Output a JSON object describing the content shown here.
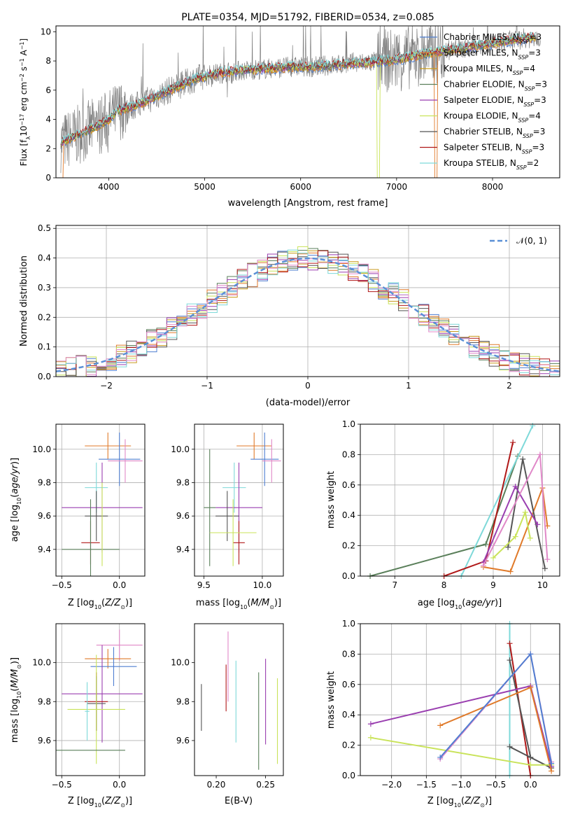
{
  "colors": {
    "chabrier_miles": "#4f7fd1",
    "salpeter_miles": "#e07a2a",
    "kroupa_miles": "#c89a1c",
    "chabrier_elodie": "#5a7f5a",
    "salpeter_elodie": "#9a3fb0",
    "kroupa_elodie": "#c9e35a",
    "chabrier_stelib": "#555555",
    "salpeter_stelib": "#b01818",
    "kroupa_stelib": "#7ed9d9",
    "pink": "#e088c8",
    "data_gray": "#808080",
    "normal_curve": "#5a8fd6"
  },
  "chart_data": [
    {
      "id": "spectrum",
      "type": "line",
      "title": "PLATE=0354, MJD=51792, FIBERID=0534, z=0.085",
      "xlabel": "wavelength [Angstrom, rest frame]",
      "ylabel": "Flux [f",
      "ylabel_unit": "10",
      "xlim": [
        3450,
        8700
      ],
      "ylim": [
        0,
        10.4
      ],
      "xticks": [
        "4000",
        "5000",
        "6000",
        "7000",
        "8000"
      ],
      "yticks": [
        "0",
        "2",
        "4",
        "6",
        "8",
        "10"
      ],
      "continuum": [
        [
          3500,
          2.4
        ],
        [
          3700,
          3.0
        ],
        [
          3900,
          3.6
        ],
        [
          4000,
          4.0
        ],
        [
          4100,
          4.6
        ],
        [
          4300,
          5.0
        ],
        [
          4500,
          5.6
        ],
        [
          4700,
          6.2
        ],
        [
          4900,
          6.8
        ],
        [
          5100,
          7.1
        ],
        [
          5300,
          7.3
        ],
        [
          5500,
          7.4
        ],
        [
          5700,
          7.5
        ],
        [
          5900,
          7.6
        ],
        [
          6100,
          7.6
        ],
        [
          6300,
          7.7
        ],
        [
          6500,
          7.8
        ],
        [
          6700,
          7.9
        ],
        [
          6900,
          8.0
        ],
        [
          7100,
          8.2
        ],
        [
          7300,
          8.5
        ],
        [
          7400,
          8.6
        ],
        [
          7600,
          8.8
        ],
        [
          7800,
          9.0
        ],
        [
          8000,
          9.2
        ],
        [
          8200,
          9.4
        ],
        [
          8400,
          9.6
        ],
        [
          8600,
          9.8
        ]
      ],
      "legend_position": "upper-right",
      "legend": [
        {
          "name": "Chabrier MILES, N",
          "sub": "SSP",
          "eq": "=3"
        },
        {
          "name": "Salpeter MILES, N",
          "sub": "SSP",
          "eq": "=3"
        },
        {
          "name": "Kroupa MILES, N",
          "sub": "SSP",
          "eq": "=4"
        },
        {
          "name": "Chabrier ELODIE, N",
          "sub": "SSP",
          "eq": "=3"
        },
        {
          "name": "Salpeter ELODIE, N",
          "sub": "SSP",
          "eq": "=3"
        },
        {
          "name": "Kroupa ELODIE, N",
          "sub": "SSP",
          "eq": "=4"
        },
        {
          "name": "Chabrier STELIB, N",
          "sub": "SSP",
          "eq": "=3"
        },
        {
          "name": "Salpeter STELIB, N",
          "sub": "SSP",
          "eq": "=3"
        },
        {
          "name": "Kroupa STELIB, N",
          "sub": "SSP",
          "eq": "=2"
        }
      ]
    },
    {
      "id": "residuals",
      "type": "bar",
      "xlabel": "(data-model)/error",
      "ylabel": "Normed distribution",
      "xlim": [
        -2.5,
        2.5
      ],
      "ylim": [
        0,
        0.51
      ],
      "xticks": [
        "−2",
        "−1",
        "0",
        "1",
        "2"
      ],
      "yticks": [
        "0.0",
        "0.1",
        "0.2",
        "0.3",
        "0.4",
        "0.5"
      ],
      "grid": true,
      "legend_position": "upper-right",
      "legend_label": "𝒩(0, 1)"
    },
    {
      "id": "age_vs_Z",
      "type": "scatter",
      "xlabel": "Z [log",
      "xlabel_tail": "(Z/Z",
      "ylabel": "age  [log",
      "ylabel_tail": "(age/yr)]",
      "xlim": [
        -0.55,
        0.22
      ],
      "ylim": [
        9.24,
        10.15
      ],
      "xticks": [
        "−0.5",
        "0.0"
      ],
      "yticks": [
        "9.4",
        "9.6",
        "9.8",
        "10.0"
      ],
      "grid": true,
      "points": [
        {
          "x": -0.1,
          "y": 10.02,
          "xerr": 0.2,
          "yerr": 0.08,
          "c": "salpeter_miles"
        },
        {
          "x": 0.0,
          "y": 9.94,
          "xerr": 0.18,
          "yerr": 0.16,
          "c": "chabrier_miles"
        },
        {
          "x": 0.05,
          "y": 9.93,
          "xerr": 0.15,
          "yerr": 0.13,
          "c": "pink"
        },
        {
          "x": -0.2,
          "y": 9.77,
          "xerr": 0.1,
          "yerr": 0.15,
          "c": "kroupa_stelib"
        },
        {
          "x": -0.15,
          "y": 9.65,
          "xerr": 0.35,
          "yerr": 0.27,
          "c": "salpeter_elodie"
        },
        {
          "x": -0.2,
          "y": 9.6,
          "xerr": 0.1,
          "yerr": 0.15,
          "c": "chabrier_stelib"
        },
        {
          "x": -0.25,
          "y": 9.44,
          "xerr": 0.08,
          "yerr": 0.13,
          "c": "salpeter_stelib"
        },
        {
          "x": -0.25,
          "y": 9.4,
          "xerr": 0.25,
          "yerr": 0.3,
          "c": "chabrier_elodie"
        },
        {
          "x": -0.15,
          "y": 9.55,
          "xerr": 0.0,
          "yerr": 0.25,
          "c": "kroupa_elodie"
        }
      ]
    },
    {
      "id": "age_vs_mass",
      "type": "scatter",
      "xlabel": "mass [log",
      "xlabel_tail": "(M/M",
      "xlim": [
        9.42,
        10.18
      ],
      "ylim": [
        9.24,
        10.15
      ],
      "xticks": [
        "9.5",
        "10.0"
      ],
      "yticks": [
        "9.4",
        "9.6",
        "9.8",
        "10.0"
      ],
      "grid": true,
      "points": [
        {
          "x": 9.93,
          "y": 10.02,
          "xerr": 0.15,
          "yerr": 0.08,
          "c": "salpeter_miles"
        },
        {
          "x": 10.02,
          "y": 9.94,
          "xerr": 0.12,
          "yerr": 0.16,
          "c": "chabrier_miles"
        },
        {
          "x": 10.08,
          "y": 9.93,
          "xerr": 0.08,
          "yerr": 0.13,
          "c": "pink"
        },
        {
          "x": 9.76,
          "y": 9.77,
          "xerr": 0.1,
          "yerr": 0.15,
          "c": "kroupa_stelib"
        },
        {
          "x": 9.8,
          "y": 9.65,
          "xerr": 0.2,
          "yerr": 0.27,
          "c": "salpeter_elodie"
        },
        {
          "x": 9.7,
          "y": 9.6,
          "xerr": 0.1,
          "yerr": 0.15,
          "c": "chabrier_stelib"
        },
        {
          "x": 9.8,
          "y": 9.44,
          "xerr": 0.05,
          "yerr": 0.13,
          "c": "salpeter_stelib"
        },
        {
          "x": 9.55,
          "y": 9.65,
          "xerr": 0.05,
          "yerr": 0.35,
          "c": "chabrier_elodie"
        },
        {
          "x": 9.75,
          "y": 9.5,
          "xerr": 0.2,
          "yerr": 0.2,
          "c": "kroupa_elodie"
        }
      ]
    },
    {
      "id": "massweight_vs_age",
      "type": "line",
      "xlabel": "age  [log",
      "xlabel_tail": "(age/yr)]",
      "ylabel": "mass weight",
      "xlim": [
        6.3,
        10.35
      ],
      "ylim": [
        0,
        1
      ],
      "xticks": [
        "7",
        "8",
        "9",
        "10"
      ],
      "yticks": [
        "0.0",
        "0.2",
        "0.4",
        "0.6",
        "0.8",
        "1.0"
      ],
      "grid": true,
      "series": [
        {
          "c": "chabrier_elodie",
          "pts": [
            [
              6.5,
              0.0
            ],
            [
              8.85,
              0.21
            ],
            [
              9.5,
              0.79
            ]
          ]
        },
        {
          "c": "kroupa_stelib",
          "pts": [
            [
              8.35,
              0.0
            ],
            [
              9.8,
              0.99
            ]
          ]
        },
        {
          "c": "salpeter_stelib",
          "pts": [
            [
              8.0,
              0.0
            ],
            [
              8.85,
              0.1
            ],
            [
              9.4,
              0.88
            ]
          ]
        },
        {
          "c": "salpeter_miles",
          "pts": [
            [
              8.8,
              0.06
            ],
            [
              9.35,
              0.03
            ],
            [
              10.0,
              0.58
            ],
            [
              10.1,
              0.33
            ]
          ]
        },
        {
          "c": "chabrier_stelib",
          "pts": [
            [
              9.3,
              0.19
            ],
            [
              9.6,
              0.77
            ],
            [
              10.05,
              0.05
            ]
          ]
        },
        {
          "c": "salpeter_elodie",
          "pts": [
            [
              8.8,
              0.09
            ],
            [
              9.45,
              0.59
            ],
            [
              9.9,
              0.34
            ]
          ]
        },
        {
          "c": "pink",
          "pts": [
            [
              8.8,
              0.07
            ],
            [
              9.95,
              0.8
            ],
            [
              10.1,
              0.11
            ]
          ]
        },
        {
          "c": "kroupa_elodie",
          "pts": [
            [
              9.0,
              0.12
            ],
            [
              9.45,
              0.26
            ],
            [
              9.65,
              0.42
            ],
            [
              9.75,
              0.25
            ]
          ]
        }
      ]
    },
    {
      "id": "mass_vs_Z",
      "type": "scatter",
      "xlabel": "Z [log",
      "xlabel_tail": "(Z/Z",
      "ylabel": "mass [log",
      "ylabel_tail": "(M/M",
      "xlim": [
        -0.55,
        0.22
      ],
      "ylim": [
        9.42,
        10.2
      ],
      "xticks": [
        "−0.5",
        "0.0"
      ],
      "yticks": [
        "9.6",
        "9.8",
        "10.0"
      ],
      "grid": true,
      "points": [
        {
          "x": 0.0,
          "y": 10.09,
          "xerr": 0.2,
          "yerr": 0.08,
          "c": "pink"
        },
        {
          "x": -0.1,
          "y": 10.02,
          "xerr": 0.2,
          "yerr": 0.05,
          "c": "salpeter_miles"
        },
        {
          "x": -0.05,
          "y": 9.98,
          "xerr": 0.2,
          "yerr": 0.1,
          "c": "chabrier_miles"
        },
        {
          "x": -0.15,
          "y": 9.84,
          "xerr": 0.35,
          "yerr": 0.25,
          "c": "salpeter_elodie"
        },
        {
          "x": -0.2,
          "y": 9.8,
          "xerr": 0.1,
          "yerr": 0.15,
          "c": "salpeter_stelib"
        },
        {
          "x": -0.2,
          "y": 9.79,
          "xerr": 0.08,
          "yerr": 0.14,
          "c": "chabrier_stelib"
        },
        {
          "x": -0.2,
          "y": 9.76,
          "xerr": 0.25,
          "yerr": 0.28,
          "c": "kroupa_elodie"
        },
        {
          "x": -0.25,
          "y": 9.55,
          "xerr": 0.3,
          "yerr": 0.0,
          "c": "chabrier_elodie"
        },
        {
          "x": -0.28,
          "y": 9.75,
          "xerr": 0.02,
          "yerr": 0.15,
          "c": "kroupa_stelib"
        }
      ]
    },
    {
      "id": "mass_vs_EBV",
      "type": "scatter",
      "xlabel": "E(B-V)",
      "xlim": [
        0.178,
        0.268
      ],
      "ylim": [
        9.42,
        10.2
      ],
      "xticks": [
        "0.20",
        "0.25"
      ],
      "yticks": [
        "9.6",
        "9.8",
        "10.0"
      ],
      "points": [
        {
          "x": 0.185,
          "y": 9.77,
          "yerr": 0.12,
          "c": "chabrier_stelib"
        },
        {
          "x": 0.21,
          "y": 9.87,
          "yerr": 0.12,
          "c": "salpeter_stelib"
        },
        {
          "x": 0.212,
          "y": 9.98,
          "yerr": 0.18,
          "c": "pink"
        },
        {
          "x": 0.22,
          "y": 9.8,
          "yerr": 0.21,
          "c": "kroupa_stelib"
        },
        {
          "x": 0.243,
          "y": 9.7,
          "yerr": 0.25,
          "c": "chabrier_elodie"
        },
        {
          "x": 0.25,
          "y": 9.8,
          "yerr": 0.22,
          "c": "salpeter_elodie"
        },
        {
          "x": 0.262,
          "y": 9.7,
          "yerr": 0.22,
          "c": "kroupa_elodie"
        }
      ]
    },
    {
      "id": "massweight_vs_Z",
      "type": "line",
      "xlabel": "Z [log",
      "xlabel_tail": "(Z/Z",
      "ylabel": "mass weight",
      "xlim": [
        -2.45,
        0.42
      ],
      "ylim": [
        0,
        1
      ],
      "xticks": [
        "−2.0",
        "−1.5",
        "−1.0",
        "−0.5",
        "0.0"
      ],
      "yticks": [
        "0.0",
        "0.2",
        "0.4",
        "0.6",
        "0.8",
        "1.0"
      ],
      "grid": true,
      "series": [
        {
          "c": "kroupa_stelib",
          "pts": [
            [
              -0.3,
              0.0
            ],
            [
              -0.3,
              1.0
            ]
          ]
        },
        {
          "c": "salpeter_stelib",
          "pts": [
            [
              -0.3,
              0.87
            ],
            [
              0.0,
              0.0
            ]
          ]
        },
        {
          "c": "chabrier_stelib",
          "pts": [
            [
              -0.3,
              0.76
            ],
            [
              0.0,
              0.12
            ]
          ]
        },
        {
          "c": "chabrier_stelib",
          "pts": [
            [
              -0.3,
              0.19
            ],
            [
              0.0,
              0.12
            ],
            [
              0.3,
              0.05
            ]
          ]
        },
        {
          "c": "kroupa_elodie",
          "pts": [
            [
              -2.3,
              0.25
            ],
            [
              0.0,
              0.07
            ],
            [
              0.3,
              0.07
            ]
          ]
        },
        {
          "c": "salpeter_elodie",
          "pts": [
            [
              -2.3,
              0.34
            ],
            [
              0.0,
              0.59
            ],
            [
              0.3,
              0.06
            ]
          ]
        },
        {
          "c": "salpeter_miles",
          "pts": [
            [
              -1.3,
              0.33
            ],
            [
              0.0,
              0.58
            ],
            [
              0.3,
              0.03
            ]
          ]
        },
        {
          "c": "pink",
          "pts": [
            [
              -1.3,
              0.11
            ],
            [
              0.0,
              0.8
            ],
            [
              0.3,
              0.09
            ]
          ]
        },
        {
          "c": "chabrier_miles",
          "pts": [
            [
              -1.3,
              0.12
            ],
            [
              0.0,
              0.8
            ],
            [
              0.3,
              0.08
            ]
          ]
        }
      ]
    }
  ]
}
